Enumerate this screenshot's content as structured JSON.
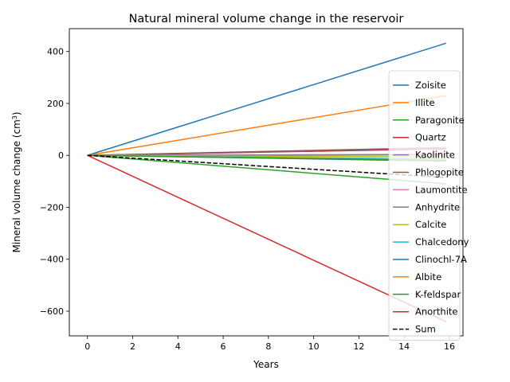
{
  "chart_data": {
    "type": "line",
    "title": "Natural mineral volume change in the reservoir",
    "xlabel": "Years",
    "ylabel_main": "Mineral volume change (cm",
    "ylabel_sup": "3",
    "ylabel_close": ")",
    "xlim": [
      -0.8,
      16.6
    ],
    "ylim": [
      -695,
      488
    ],
    "xticks": [
      0,
      2,
      4,
      6,
      8,
      10,
      12,
      14,
      16
    ],
    "yticks": [
      -600,
      -400,
      -200,
      0,
      200,
      400
    ],
    "grid": false,
    "legend_position": "right",
    "x": [
      0,
      15.85
    ],
    "series": [
      {
        "name": "Zoisite",
        "color": "#1f77b4",
        "dash": "solid",
        "values": [
          0,
          432
        ]
      },
      {
        "name": "Illite",
        "color": "#ff7f0e",
        "dash": "solid",
        "values": [
          0,
          230
        ]
      },
      {
        "name": "Paragonite",
        "color": "#2ca02c",
        "dash": "solid",
        "values": [
          0,
          -110
        ]
      },
      {
        "name": "Quartz",
        "color": "#d62728",
        "dash": "solid",
        "values": [
          0,
          25
        ]
      },
      {
        "name": "Kaolinite",
        "color": "#9467bd",
        "dash": "solid",
        "values": [
          0,
          28
        ]
      },
      {
        "name": "Phlogopite",
        "color": "#8c564b",
        "dash": "solid",
        "values": [
          0,
          30
        ]
      },
      {
        "name": "Laumontite",
        "color": "#e377c2",
        "dash": "solid",
        "values": [
          0,
          4
        ]
      },
      {
        "name": "Anhydrite",
        "color": "#7f7f7f",
        "dash": "solid",
        "values": [
          0,
          2
        ]
      },
      {
        "name": "Calcite",
        "color": "#bcbd22",
        "dash": "solid",
        "values": [
          0,
          -6
        ]
      },
      {
        "name": "Chalcedony",
        "color": "#17becf",
        "dash": "solid",
        "values": [
          0,
          -15
        ]
      },
      {
        "name": "Clinochl-7A",
        "color": "#1f77b4",
        "dash": "solid",
        "values": [
          0,
          -22
        ]
      },
      {
        "name": "Albite",
        "color": "#ff7f0e",
        "dash": "solid",
        "values": [
          0,
          -18
        ]
      },
      {
        "name": "K-feldspar",
        "color": "#2ca02c",
        "dash": "solid",
        "values": [
          0,
          -20
        ]
      },
      {
        "name": "Anorthite",
        "color": "#d62728",
        "dash": "solid",
        "values": [
          0,
          -640
        ]
      },
      {
        "name": "Sum",
        "color": "#000000",
        "dash": "dashed",
        "values": [
          0,
          -85
        ]
      }
    ]
  }
}
